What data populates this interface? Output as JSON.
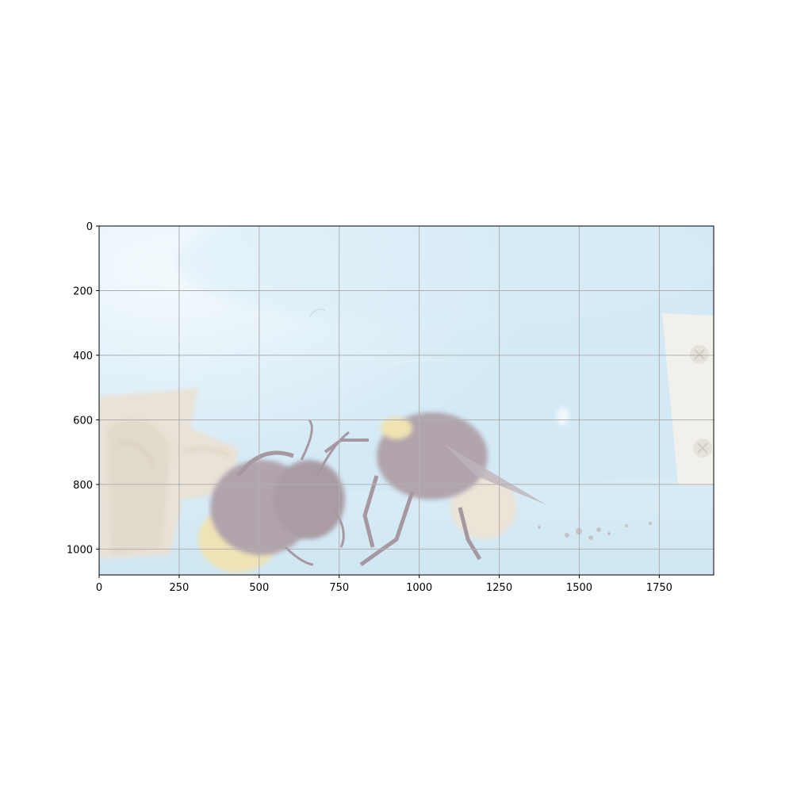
{
  "chart_data": {
    "type": "image",
    "title": "",
    "xlabel": "",
    "ylabel": "",
    "xlim": [
      0,
      1920
    ],
    "ylim": [
      1080,
      0
    ],
    "grid": true,
    "x_ticks": [
      0,
      250,
      500,
      750,
      1000,
      1250,
      1500,
      1750
    ],
    "y_ticks": [
      0,
      200,
      400,
      600,
      800,
      1000
    ],
    "x_tick_labels": [
      "0",
      "250",
      "500",
      "750",
      "1000",
      "1250",
      "1500",
      "1750"
    ],
    "y_tick_labels": [
      "0",
      "200",
      "400",
      "600",
      "800",
      "1000"
    ],
    "image_subject": "two bumblebees on a light blue surface",
    "colors": {
      "background_blue": "#b9dcef",
      "highlight_blue": "#e6f4fb",
      "bee_body": "#8a7682",
      "bee_yellow": "#e8d487",
      "bee_fuzz": "#d9cfb8",
      "wood": "#ddd1bd",
      "panel": "#eeeae2",
      "grid": "#b0b0b0"
    }
  }
}
